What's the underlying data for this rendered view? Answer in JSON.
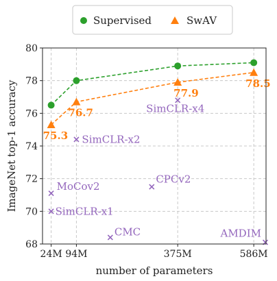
{
  "chart_data": {
    "type": "line",
    "xlabel": "number of parameters",
    "ylabel": "ImageNet top-1 accuracy",
    "xlim": [
      0,
      620
    ],
    "ylim": [
      68,
      80
    ],
    "x_ticks": [
      {
        "value": 24,
        "label": "24M"
      },
      {
        "value": 94,
        "label": "94M"
      },
      {
        "value": 375,
        "label": "375M"
      },
      {
        "value": 586,
        "label": "586M"
      }
    ],
    "y_ticks": [
      68,
      70,
      72,
      74,
      76,
      78,
      80
    ],
    "grid": true,
    "legend_placement": "top",
    "series": [
      {
        "name": "Supervised",
        "marker": "circle",
        "color": "#2ca02c",
        "x": [
          24,
          94,
          375,
          586
        ],
        "y": [
          76.5,
          78.0,
          78.9,
          79.1
        ]
      },
      {
        "name": "SwAV",
        "marker": "triangle",
        "color": "#ff7f0e",
        "x": [
          24,
          94,
          375,
          586
        ],
        "y": [
          75.3,
          76.7,
          77.9,
          78.5
        ]
      }
    ],
    "value_labels": [
      {
        "text": "75.3",
        "x": 24,
        "y": 75.3
      },
      {
        "text": "76.7",
        "x": 94,
        "y": 76.7
      },
      {
        "text": "77.9",
        "x": 375,
        "y": 77.9
      },
      {
        "text": "78.5",
        "x": 586,
        "y": 78.5
      }
    ],
    "other_methods": {
      "marker": "x",
      "color": "#9467bd",
      "points": [
        {
          "label": "SimCLR-x2",
          "x": 94,
          "y": 74.4
        },
        {
          "label": "SimCLR-x4",
          "x": 375,
          "y": 76.8
        },
        {
          "label": "MoCov2",
          "x": 24,
          "y": 71.1
        },
        {
          "label": "SimCLR-x1",
          "x": 24,
          "y": 70.0
        },
        {
          "label": "CPCv2",
          "x": 303,
          "y": 71.5
        },
        {
          "label": "CMC",
          "x": 188,
          "y": 68.4
        },
        {
          "label": "AMDIM",
          "x": 626,
          "y": 68.1
        }
      ]
    }
  }
}
